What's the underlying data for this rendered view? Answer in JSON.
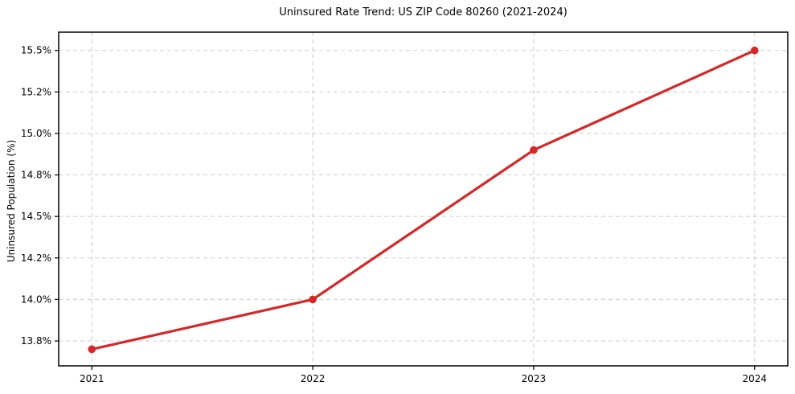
{
  "chart_data": {
    "type": "line",
    "title": "Uninsured Rate Trend: US ZIP Code 80260 (2021-2024)",
    "xlabel": "",
    "ylabel": "Uninsured Population (%)",
    "x": [
      2021,
      2022,
      2023,
      2024
    ],
    "series": [
      {
        "name": "Uninsured rate",
        "values": [
          13.7,
          14.0,
          14.9,
          15.5
        ],
        "color": "#d62728",
        "marker": "circle"
      }
    ],
    "xticks": [
      {
        "value": 2021,
        "label": "2021"
      },
      {
        "value": 2022,
        "label": "2022"
      },
      {
        "value": 2023,
        "label": "2023"
      },
      {
        "value": 2024,
        "label": "2024"
      }
    ],
    "yticks": [
      {
        "value": 13.75,
        "label": "13.8%"
      },
      {
        "value": 14.0,
        "label": "14.0%"
      },
      {
        "value": 14.25,
        "label": "14.2%"
      },
      {
        "value": 14.5,
        "label": "14.5%"
      },
      {
        "value": 14.75,
        "label": "14.8%"
      },
      {
        "value": 15.0,
        "label": "15.0%"
      },
      {
        "value": 15.25,
        "label": "15.2%"
      },
      {
        "value": 15.5,
        "label": "15.5%"
      }
    ],
    "xlim": [
      2020.85,
      2024.15
    ],
    "ylim": [
      13.6,
      15.61
    ],
    "grid": {
      "visible": true,
      "style": "dashed",
      "color": "#cccccc"
    },
    "legend_position": "none",
    "colors": {
      "line": "#d62728",
      "grid": "#cccccc",
      "spine": "#000000",
      "text": "#000000",
      "background": "#ffffff"
    }
  }
}
